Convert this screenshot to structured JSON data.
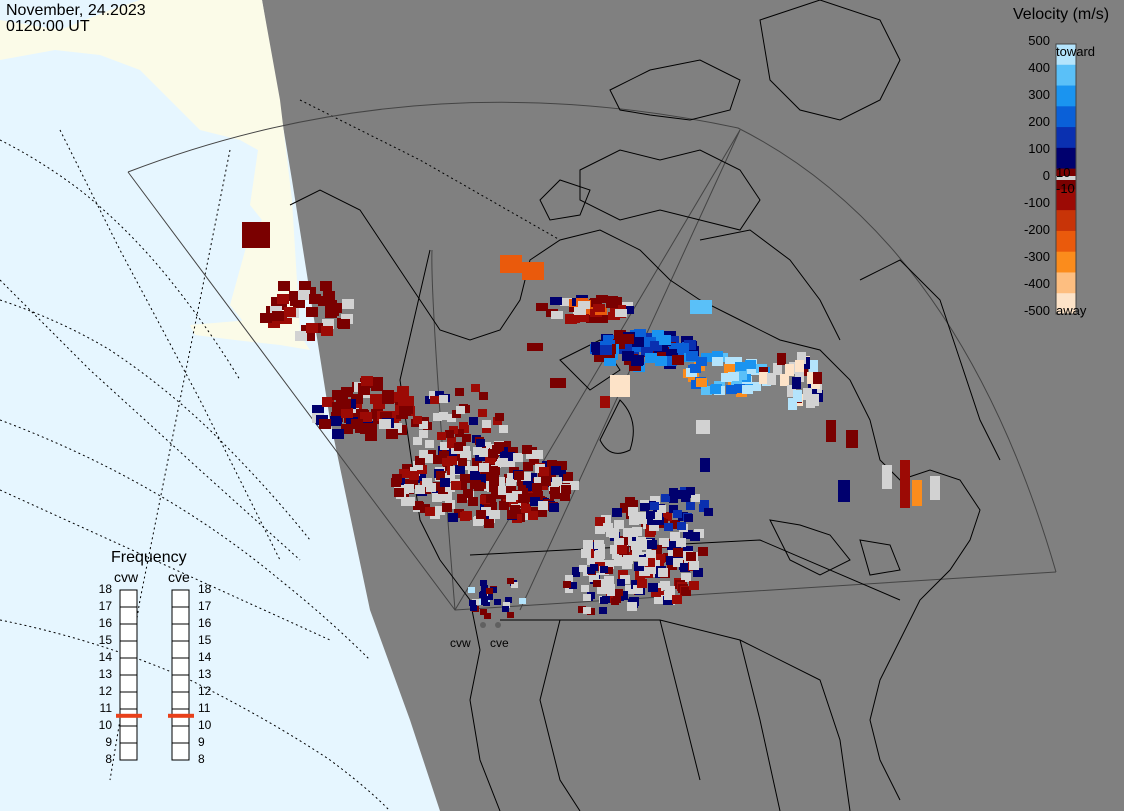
{
  "header": {
    "date": "November, 24.2023",
    "time": "0120:00 UT"
  },
  "velocity_scale": {
    "title": "Velocity (m/s)",
    "ticks": [
      "500",
      "400",
      "300",
      "200",
      "100",
      "0",
      "-100",
      "-200",
      "-300",
      "-400",
      "-500"
    ],
    "markers": [
      "10",
      "-10"
    ],
    "toward_label": "toward",
    "away_label": "away",
    "colors": [
      "#fde3c8",
      "#fdbe80",
      "#fb8c1c",
      "#ea5a0c",
      "#c83408",
      "#9c0a05",
      "#7a0000",
      "#00006e",
      "#0a30b0",
      "#0a60d8",
      "#1a94f0",
      "#5ac0f8",
      "#b4e4fc"
    ]
  },
  "frequency": {
    "title": "Frequency",
    "radars": [
      {
        "name": "cvw",
        "value": 10.6
      },
      {
        "name": "cve",
        "value": 10.6
      }
    ],
    "ticks": [
      "18",
      "17",
      "16",
      "15",
      "14",
      "13",
      "12",
      "11",
      "10",
      "9",
      "8"
    ],
    "indicator_color": "#e8401a"
  },
  "sites": [
    "cvw",
    "cve"
  ],
  "map_colors": {
    "land": "#808080",
    "ocean": "#e6f6ff",
    "daylight": "#fbfbe8",
    "ground_scatter": "#d2d2d2"
  }
}
